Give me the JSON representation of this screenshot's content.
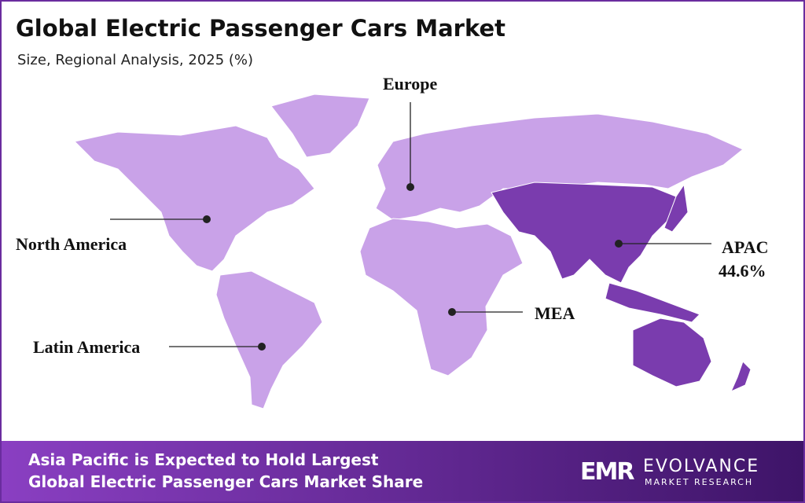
{
  "header": {
    "title": "Global Electric Passenger Cars Market",
    "subtitle": "Size, Regional Analysis, 2025 (%)"
  },
  "regions": [
    {
      "name": "Europe"
    },
    {
      "name": "North America"
    },
    {
      "name": "APAC",
      "value": 44.6,
      "value_label": "44.6%"
    },
    {
      "name": "MEA"
    },
    {
      "name": "Latin America"
    }
  ],
  "footer": {
    "lines": [
      "Asia Pacific is Expected to Hold Largest",
      "Global Electric Passenger Cars Market Share"
    ],
    "logo": {
      "mark": "EMR",
      "name": "EVOLVANCE",
      "tagline": "MARKET RESEARCH"
    }
  }
}
